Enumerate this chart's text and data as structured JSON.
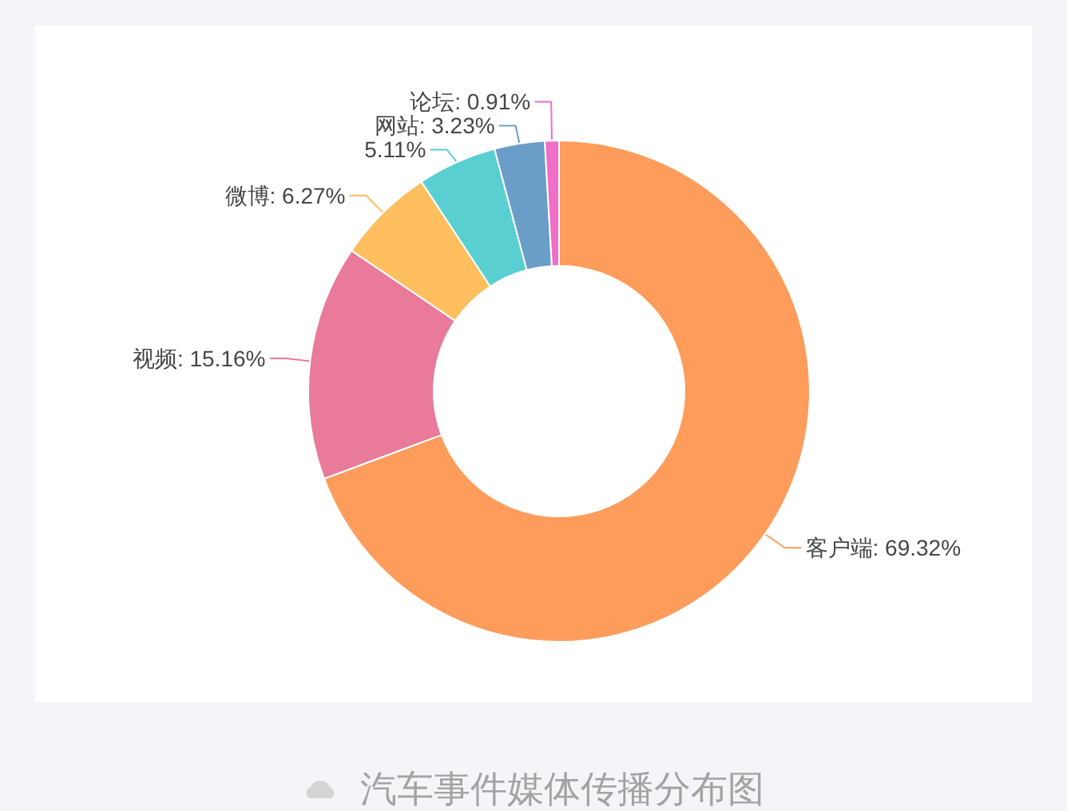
{
  "chart_data": {
    "type": "donut",
    "categories": [
      "客户端",
      "视频",
      "微博",
      null,
      "网站",
      "论坛"
    ],
    "values": [
      69.32,
      15.16,
      6.27,
      5.11,
      3.23,
      0.91
    ],
    "colors": [
      "#fe9c5b",
      "#ea7a99",
      "#ffbf5f",
      "#5acfd2",
      "#6a9dc8",
      "#ef6ec7"
    ],
    "value_labels": [
      "69.32%",
      "15.16%",
      "6.27%",
      "5.11%",
      "3.23%",
      "0.91%"
    ],
    "annotations": [
      "汽车事件媒体传播分布图"
    ]
  }
}
